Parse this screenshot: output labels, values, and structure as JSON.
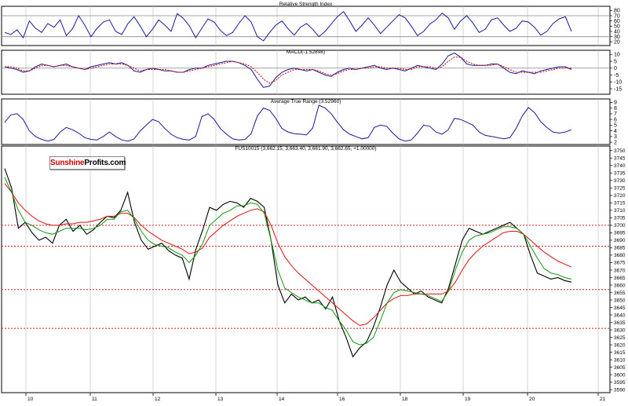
{
  "colors": {
    "rsi_line": "#1a1a9a",
    "macd_line": "#1a1a9a",
    "macd_signal": "#cc0000",
    "atr_line": "#1a1a9a",
    "price_bars": "#000000",
    "ma_fast": "#119911",
    "ma_slow": "#dd1111",
    "level_lines": "#cc2222",
    "logo_red": "#cc0000"
  },
  "logo": {
    "part1": "Sunshine",
    "part2": "Profits.com"
  },
  "chart_data": [
    {
      "type": "line",
      "title": "Relative Strength Index",
      "ylim": [
        13,
        88
      ],
      "yticks": [
        20,
        30,
        40,
        50,
        60,
        70,
        80
      ],
      "reference_lines": [
        30,
        70
      ],
      "series": [
        {
          "values": [
            38,
            34,
            43,
            28,
            60,
            46,
            38,
            55,
            48,
            62,
            32,
            45,
            70,
            52,
            30,
            46,
            58,
            62,
            40,
            34,
            55,
            68,
            50,
            30,
            44,
            62,
            52,
            40,
            74,
            65,
            50,
            28,
            46,
            64,
            58,
            42,
            32,
            38,
            55,
            70,
            58,
            30,
            22,
            38,
            52,
            60,
            45,
            33,
            48,
            55,
            44,
            30,
            40,
            54,
            68,
            78,
            60,
            40,
            52,
            66,
            52,
            36,
            48,
            60,
            72,
            66,
            50,
            32,
            40,
            54,
            62,
            75,
            66,
            44,
            60,
            70,
            56,
            38,
            44,
            62,
            66,
            52,
            40,
            46,
            60,
            58,
            48,
            33,
            40,
            55,
            64,
            68,
            40
          ]
        }
      ]
    },
    {
      "type": "line",
      "title": "MACD(-1.52898)",
      "ylim": [
        -19,
        13
      ],
      "yticks": [
        -15,
        -10,
        -5,
        0,
        5,
        10
      ],
      "reference_lines": [
        0
      ],
      "series": [
        {
          "values": [
            1,
            0,
            -1,
            -3,
            -2,
            1,
            3,
            2,
            1,
            2,
            3,
            1,
            0,
            -1,
            1,
            2,
            3,
            4,
            3,
            4,
            2,
            -2,
            -3,
            -1,
            0,
            -1,
            -2,
            -2,
            -3,
            -3,
            -1,
            0,
            0,
            2,
            3,
            4,
            5,
            5,
            4,
            2,
            -1,
            -8,
            -14,
            -13,
            -7,
            -3,
            -1,
            0,
            -1,
            -2,
            -1,
            -3,
            -5,
            -6,
            -3,
            -1,
            0,
            -1,
            0,
            1,
            2,
            0,
            -1,
            0,
            -1,
            -2,
            0,
            2,
            1,
            0,
            -1,
            3,
            9,
            11,
            8,
            3,
            2,
            2,
            2,
            3,
            3,
            0,
            -3,
            -4,
            -2,
            -3,
            -4,
            -2,
            -1,
            0,
            1,
            1,
            -1
          ]
        },
        {
          "values": [
            1,
            1,
            0,
            -2,
            -2,
            0,
            2,
            2,
            1,
            2,
            2,
            1,
            0,
            -1,
            0,
            1,
            2,
            3,
            3,
            3,
            2,
            0,
            -2,
            -1,
            -1,
            -1,
            -1,
            -2,
            -3,
            -3,
            -2,
            -1,
            0,
            1,
            2,
            3,
            4,
            5,
            4,
            3,
            1,
            -3,
            -8,
            -11,
            -9,
            -5,
            -3,
            -1,
            -1,
            -1,
            -1,
            -2,
            -4,
            -5,
            -4,
            -2,
            -1,
            -1,
            0,
            0,
            1,
            1,
            0,
            0,
            0,
            -1,
            -1,
            1,
            1,
            1,
            0,
            1,
            5,
            8,
            8,
            5,
            3,
            2,
            2,
            2,
            3,
            1,
            -1,
            -3,
            -3,
            -3,
            -3,
            -3,
            -2,
            -1,
            0,
            0,
            0
          ]
        }
      ]
    },
    {
      "type": "line",
      "title": "Average True Range (3.52960)",
      "ylim": [
        1.6,
        9.6
      ],
      "yticks": [
        2,
        3,
        4,
        5,
        6,
        7,
        8,
        9
      ],
      "series": [
        {
          "values": [
            5.5,
            6.8,
            7.0,
            6.0,
            4.0,
            3.0,
            2.5,
            2.2,
            2.5,
            3.8,
            4.6,
            4.2,
            3.6,
            2.8,
            2.5,
            2.4,
            3.0,
            3.8,
            3.0,
            2.4,
            2.2,
            2.6,
            4.0,
            5.0,
            6.0,
            5.6,
            4.4,
            3.4,
            2.8,
            2.5,
            2.4,
            3.0,
            6.5,
            7.0,
            6.0,
            4.4,
            3.4,
            2.6,
            2.4,
            2.5,
            3.5,
            6.6,
            8.0,
            7.6,
            6.2,
            4.4,
            3.8,
            3.5,
            3.4,
            3.3,
            4.5,
            8.5,
            8.0,
            7.0,
            5.5,
            4.2,
            3.4,
            3.0,
            2.6,
            2.8,
            4.6,
            5.0,
            4.8,
            3.6,
            2.6,
            2.2,
            2.4,
            3.6,
            5.0,
            4.8,
            3.8,
            3.4,
            4.2,
            6.2,
            6.0,
            5.5,
            5.0,
            3.8,
            3.2,
            3.0,
            2.8,
            2.6,
            2.8,
            4.4,
            6.6,
            8.1,
            7.2,
            5.6,
            4.6,
            3.8,
            3.6,
            3.8,
            4.2
          ]
        }
      ]
    },
    {
      "type": "line",
      "title": "FUS10015 (3,662.15, 3,663.40, 3,661.90, 3,662.65, +1.00000)",
      "ylim": [
        3588,
        3753
      ],
      "yticks": [
        3590,
        3595,
        3600,
        3605,
        3610,
        3615,
        3620,
        3625,
        3630,
        3635,
        3640,
        3645,
        3650,
        3655,
        3660,
        3665,
        3670,
        3675,
        3680,
        3685,
        3690,
        3695,
        3700,
        3705,
        3710,
        3715,
        3720,
        3725,
        3730,
        3735,
        3740,
        3745,
        3750
      ],
      "reference_lines": [
        3700,
        3686,
        3657,
        3631
      ],
      "xticks": [
        "10",
        "11",
        "12",
        "13",
        "14",
        "16",
        "18",
        "19",
        "20",
        "21"
      ],
      "series": [
        {
          "values": [
            3738,
            3725,
            3698,
            3702,
            3695,
            3690,
            3692,
            3688,
            3700,
            3704,
            3696,
            3700,
            3694,
            3697,
            3702,
            3706,
            3705,
            3710,
            3722,
            3702,
            3690,
            3684,
            3686,
            3688,
            3683,
            3680,
            3678,
            3664,
            3684,
            3697,
            3712,
            3710,
            3714,
            3716,
            3715,
            3712,
            3718,
            3716,
            3712,
            3690,
            3660,
            3648,
            3654,
            3650,
            3652,
            3648,
            3650,
            3644,
            3652,
            3636,
            3625,
            3612,
            3618,
            3622,
            3632,
            3645,
            3660,
            3670,
            3662,
            3658,
            3654,
            3656,
            3652,
            3650,
            3648,
            3658,
            3674,
            3690,
            3698,
            3696,
            3694,
            3696,
            3698,
            3700,
            3702,
            3698,
            3694,
            3680,
            3668,
            3666,
            3664,
            3665,
            3663,
            3662
          ]
        },
        {
          "values": [
            3732,
            3722,
            3710,
            3702,
            3700,
            3697,
            3695,
            3694,
            3696,
            3698,
            3698,
            3698,
            3697,
            3698,
            3700,
            3704,
            3704,
            3709,
            3710,
            3704,
            3696,
            3690,
            3687,
            3686,
            3685,
            3682,
            3680,
            3675,
            3680,
            3688,
            3700,
            3704,
            3708,
            3710,
            3713,
            3713,
            3715,
            3714,
            3708,
            3690,
            3670,
            3658,
            3655,
            3652,
            3650,
            3648,
            3648,
            3645,
            3643,
            3636,
            3630,
            3622,
            3620,
            3621,
            3625,
            3636,
            3648,
            3655,
            3657,
            3656,
            3655,
            3654,
            3653,
            3651,
            3649,
            3656,
            3670,
            3682,
            3690,
            3693,
            3694,
            3695,
            3697,
            3699,
            3699,
            3698,
            3694,
            3686,
            3678,
            3671,
            3668,
            3667,
            3665,
            3664
          ]
        },
        {
          "values": [
            3728,
            3722,
            3715,
            3710,
            3706,
            3703,
            3701,
            3700,
            3700,
            3701,
            3701,
            3702,
            3702,
            3703,
            3704,
            3706,
            3706,
            3708,
            3708,
            3705,
            3700,
            3696,
            3693,
            3690,
            3688,
            3686,
            3684,
            3681,
            3682,
            3685,
            3692,
            3696,
            3700,
            3703,
            3706,
            3708,
            3710,
            3711,
            3709,
            3700,
            3688,
            3679,
            3673,
            3668,
            3664,
            3660,
            3656,
            3652,
            3648,
            3644,
            3640,
            3636,
            3633,
            3634,
            3638,
            3643,
            3648,
            3651,
            3653,
            3653,
            3654,
            3654,
            3654,
            3654,
            3654,
            3656,
            3662,
            3670,
            3677,
            3682,
            3686,
            3689,
            3692,
            3695,
            3696,
            3696,
            3694,
            3690,
            3686,
            3682,
            3679,
            3676,
            3674,
            3672
          ]
        }
      ]
    }
  ]
}
